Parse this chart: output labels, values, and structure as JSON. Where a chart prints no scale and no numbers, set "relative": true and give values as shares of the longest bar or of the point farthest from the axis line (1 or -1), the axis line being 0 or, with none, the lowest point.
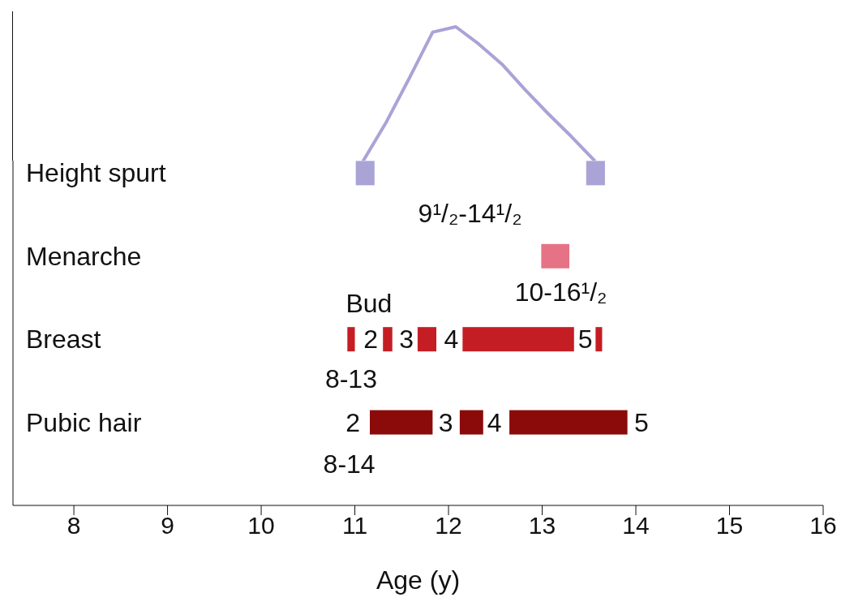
{
  "chart_data": [
    {
      "type": "line",
      "relative": true,
      "color": "#a9a3d6",
      "categories": [
        null,
        null,
        null,
        null,
        null,
        null,
        null,
        null,
        null,
        null,
        null
      ],
      "values": [
        0,
        0.29,
        0.62,
        0.96,
        1,
        0.87,
        0.72,
        0.53,
        0.35,
        0.18,
        0
      ]
    },
    {
      "type": "bar",
      "orientation": "horizontal",
      "xlabel": "Age (y)",
      "categories": [
        "Height spurt",
        "Menarche",
        "Breast",
        "Pubic hair"
      ],
      "xlim": [
        7.35,
        16
      ],
      "xticks": [
        8,
        9,
        10,
        11,
        12,
        13,
        14,
        15,
        16
      ],
      "series": [
        {
          "color": "#a9a3d6",
          "base": [
            11.01,
            null,
            null,
            null
          ],
          "values": [
            0.2,
            null,
            null,
            null
          ]
        },
        {
          "color": "#a9a3d6",
          "base": [
            13.47,
            null,
            null,
            null
          ],
          "values": [
            0.2,
            null,
            null,
            null
          ]
        },
        {
          "color": "#e57385",
          "base": [
            null,
            12.99,
            null,
            null
          ],
          "values": [
            null,
            0.3,
            null,
            null
          ]
        },
        {
          "color": "#c41e24",
          "base": [
            null,
            null,
            10.92,
            null
          ],
          "values": [
            null,
            null,
            0.08,
            null
          ]
        },
        {
          "color": "#c41e24",
          "base": [
            null,
            null,
            11.3,
            null
          ],
          "values": [
            null,
            null,
            0.1,
            null
          ]
        },
        {
          "color": "#c41e24",
          "base": [
            null,
            null,
            11.67,
            null
          ],
          "values": [
            null,
            null,
            0.2,
            null
          ]
        },
        {
          "color": "#c41e24",
          "base": [
            null,
            null,
            12.15,
            null
          ],
          "values": [
            null,
            null,
            1.19,
            null
          ]
        },
        {
          "color": "#c41e24",
          "base": [
            null,
            null,
            13.57,
            null
          ],
          "values": [
            null,
            null,
            0.07,
            null
          ]
        },
        {
          "color": "#8b0a0a",
          "base": [
            null,
            null,
            null,
            11.16
          ],
          "values": [
            null,
            null,
            null,
            0.67
          ]
        },
        {
          "color": "#8b0a0a",
          "base": [
            null,
            null,
            null,
            12.12
          ],
          "values": [
            null,
            null,
            null,
            0.25
          ]
        },
        {
          "color": "#8b0a0a",
          "base": [
            null,
            null,
            null,
            12.65
          ],
          "values": [
            null,
            null,
            null,
            1.26
          ]
        }
      ],
      "annotations": [
        "9¹/₂-14¹/₂",
        "10-16¹/₂",
        "8-13",
        "8-14",
        "Bud",
        "2",
        "3",
        "4",
        "5",
        "2",
        "3",
        "4",
        "5"
      ]
    }
  ]
}
